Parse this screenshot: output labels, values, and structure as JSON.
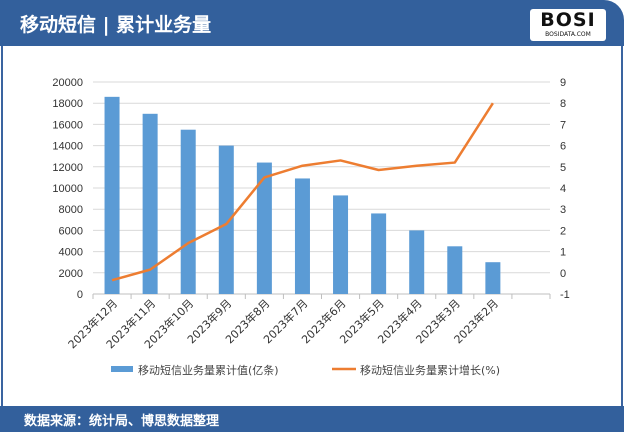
{
  "header": {
    "title": "移动短信 | 累计业务量",
    "logo_text": "BOSI",
    "logo_sub": "BOSIDATA.COM"
  },
  "footer": {
    "source": "数据来源：统计局、博思数据整理"
  },
  "colors": {
    "bar": "#5b9bd5",
    "line": "#ed7d31",
    "header": "#33609c"
  },
  "chart_data": {
    "type": "bar+line",
    "categories": [
      "2023年12月",
      "2023年11月",
      "2023年10月",
      "2023年9月",
      "2023年8月",
      "2023年7月",
      "2023年6月",
      "2023年5月",
      "2023年4月",
      "2023年3月",
      "2023年2月"
    ],
    "series": [
      {
        "name": "移动短信业务量累计值(亿条)",
        "type": "bar",
        "axis": "left",
        "values": [
          18600,
          17000,
          15500,
          14000,
          12400,
          10900,
          9300,
          7600,
          6000,
          4500,
          3000
        ]
      },
      {
        "name": "移动短信业务量累计增长(%)",
        "type": "line",
        "axis": "right",
        "values": [
          -0.35,
          0.15,
          1.4,
          2.3,
          4.5,
          5.05,
          5.3,
          4.85,
          5.05,
          5.2,
          8.0
        ]
      }
    ],
    "yleft": {
      "range": [
        0,
        20000
      ],
      "ticks": [
        "0",
        "2000",
        "4000",
        "6000",
        "8000",
        "10000",
        "12000",
        "14000",
        "16000",
        "18000",
        "20000"
      ]
    },
    "yright": {
      "range": [
        -1,
        9
      ],
      "ticks": [
        "-1",
        "0",
        "1",
        "2",
        "3",
        "4",
        "5",
        "6",
        "7",
        "8",
        "9"
      ]
    },
    "grid": true,
    "legend": "bottom"
  }
}
